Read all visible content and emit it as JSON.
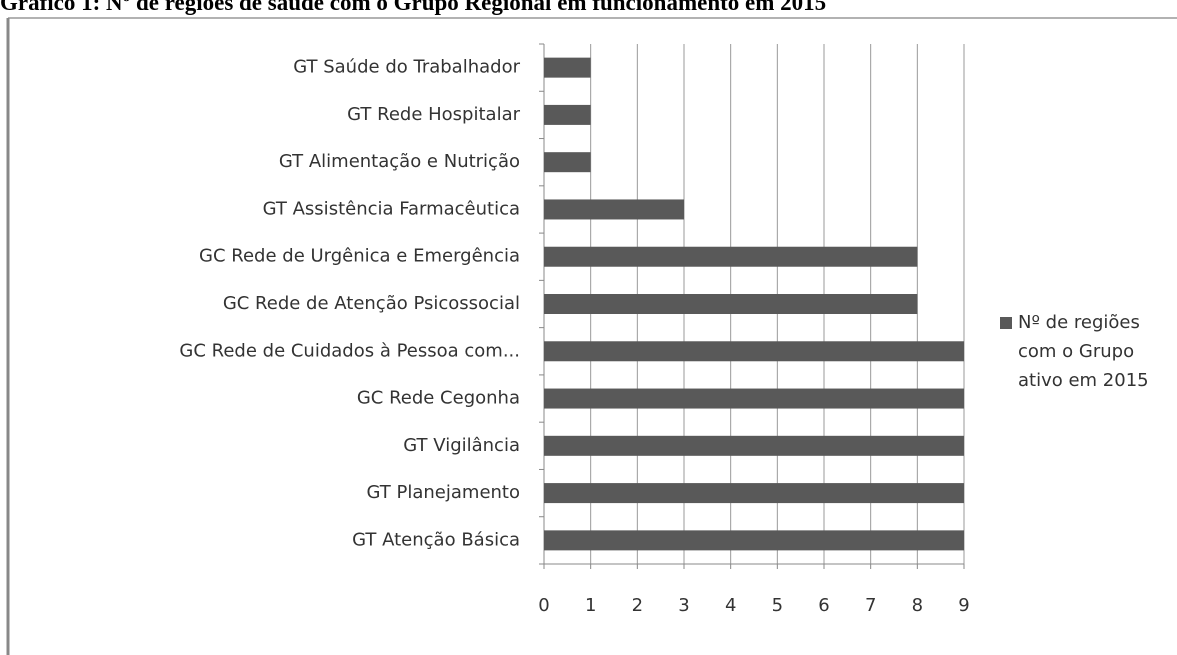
{
  "chart_data": {
    "type": "hbar",
    "title": "Gráfico 1: Nº de regiões de saúde com o Grupo Regional em funcionamento em 2015",
    "categories": [
      "GT Saúde do Trabalhador",
      "GT Rede Hospitalar",
      "GT Alimentação e Nutrição",
      "GT Assistência Farmacêutica",
      "GC Rede de Urgênica e Emergência",
      "GC Rede de Atenção Psicossocial",
      "GC Rede de Cuidados à Pessoa com...",
      "GC Rede Cegonha",
      "GT Vigilância",
      "GT Planejamento",
      "GT Atenção Básica"
    ],
    "series": [
      {
        "name": "Nº de regiões com o Grupo ativo em 2015",
        "color": "#595959",
        "values": [
          1,
          1,
          1,
          3,
          8,
          8,
          9,
          9,
          9,
          9,
          9
        ]
      }
    ],
    "xlim": [
      0,
      9
    ],
    "xticks": [
      0,
      1,
      2,
      3,
      4,
      5,
      6,
      7,
      8,
      9
    ],
    "grid": true,
    "legend": "right"
  }
}
